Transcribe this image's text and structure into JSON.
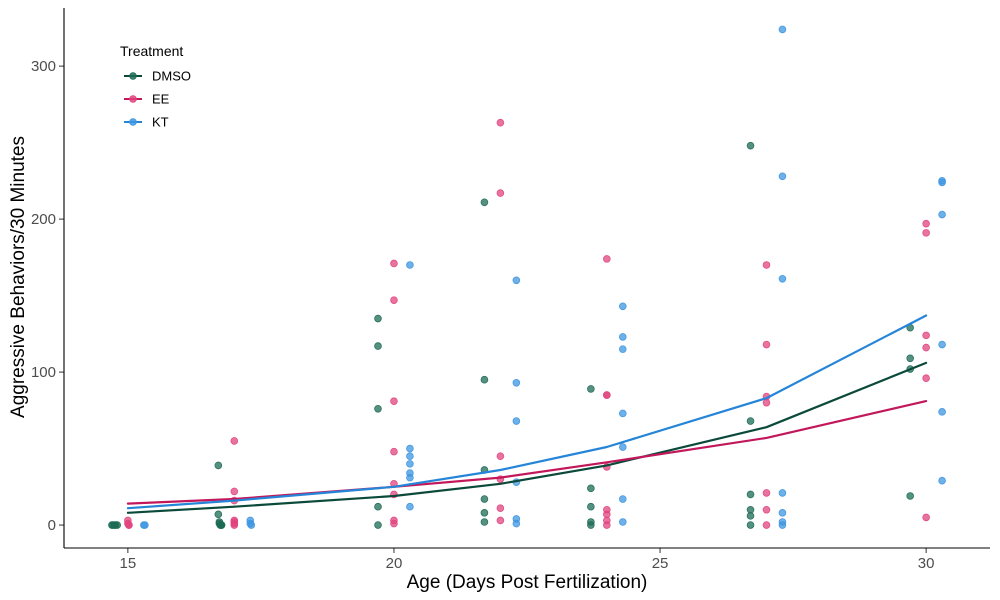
{
  "chart_data": {
    "type": "scatter",
    "xlabel": "Age (Days Post Fertilization)",
    "ylabel": "Aggressive Behaviors/30 Minutes",
    "xlim": [
      13.8,
      31.2
    ],
    "ylim": [
      -15,
      338
    ],
    "xticks": [
      15,
      20,
      25,
      30
    ],
    "yticks": [
      0,
      100,
      200,
      300
    ],
    "grid": false,
    "legend": {
      "title": "Treatment",
      "position": "top-left"
    },
    "series": [
      {
        "name": "DMSO",
        "color": "#1d6b55",
        "line_color": "#0b4a3a",
        "points": [
          [
            14.7,
            0
          ],
          [
            14.72,
            0
          ],
          [
            14.75,
            0
          ],
          [
            14.77,
            0
          ],
          [
            14.8,
            0
          ],
          [
            16.7,
            39
          ],
          [
            16.7,
            7
          ],
          [
            16.72,
            2
          ],
          [
            16.72,
            1
          ],
          [
            16.74,
            0
          ],
          [
            16.74,
            0
          ],
          [
            16.76,
            0
          ],
          [
            16.76,
            0
          ],
          [
            19.7,
            135
          ],
          [
            19.7,
            117
          ],
          [
            19.7,
            76
          ],
          [
            19.7,
            12
          ],
          [
            19.7,
            0
          ],
          [
            21.7,
            211
          ],
          [
            21.7,
            95
          ],
          [
            21.7,
            36
          ],
          [
            21.7,
            17
          ],
          [
            21.7,
            8
          ],
          [
            21.7,
            2
          ],
          [
            23.7,
            89
          ],
          [
            23.7,
            24
          ],
          [
            23.7,
            12
          ],
          [
            23.7,
            2
          ],
          [
            23.7,
            0
          ],
          [
            26.7,
            248
          ],
          [
            26.7,
            68
          ],
          [
            26.7,
            20
          ],
          [
            26.7,
            10
          ],
          [
            26.7,
            6
          ],
          [
            26.7,
            0
          ],
          [
            29.7,
            129
          ],
          [
            29.7,
            109
          ],
          [
            29.7,
            102
          ],
          [
            29.7,
            19
          ]
        ],
        "trend": [
          [
            15,
            8
          ],
          [
            17,
            12
          ],
          [
            20,
            19
          ],
          [
            22,
            27
          ],
          [
            24,
            39
          ],
          [
            27,
            64
          ],
          [
            30,
            106
          ]
        ]
      },
      {
        "name": "EE",
        "color": "#e0447e",
        "line_color": "#c2185b",
        "points": [
          [
            15,
            3
          ],
          [
            15,
            1
          ],
          [
            15.02,
            0
          ],
          [
            15.02,
            0
          ],
          [
            17,
            55
          ],
          [
            17,
            22
          ],
          [
            17,
            16
          ],
          [
            17,
            3
          ],
          [
            17,
            2
          ],
          [
            17,
            1
          ],
          [
            17,
            0
          ],
          [
            20,
            171
          ],
          [
            20,
            147
          ],
          [
            20,
            81
          ],
          [
            20,
            48
          ],
          [
            20,
            27
          ],
          [
            20,
            20
          ],
          [
            20,
            3
          ],
          [
            20,
            1
          ],
          [
            22,
            263
          ],
          [
            22,
            217
          ],
          [
            22,
            45
          ],
          [
            22,
            30
          ],
          [
            22,
            11
          ],
          [
            22,
            3
          ],
          [
            24,
            174
          ],
          [
            24,
            85
          ],
          [
            24,
            85
          ],
          [
            24,
            38
          ],
          [
            24,
            10
          ],
          [
            24,
            7
          ],
          [
            24,
            3
          ],
          [
            24,
            0
          ],
          [
            27,
            170
          ],
          [
            27,
            118
          ],
          [
            27,
            84
          ],
          [
            27,
            80
          ],
          [
            27,
            21
          ],
          [
            27,
            10
          ],
          [
            27,
            0
          ],
          [
            30,
            197
          ],
          [
            30,
            191
          ],
          [
            30,
            124
          ],
          [
            30,
            116
          ],
          [
            30,
            96
          ],
          [
            30,
            5
          ]
        ],
        "trend": [
          [
            15,
            14
          ],
          [
            17,
            17
          ],
          [
            20,
            25
          ],
          [
            22,
            31
          ],
          [
            24,
            41
          ],
          [
            27,
            57
          ],
          [
            30,
            81
          ]
        ]
      },
      {
        "name": "KT",
        "color": "#3d95e0",
        "line_color": "#2585d8",
        "points": [
          [
            15.3,
            0
          ],
          [
            15.32,
            0
          ],
          [
            17.3,
            3
          ],
          [
            17.3,
            1
          ],
          [
            17.32,
            0
          ],
          [
            20.3,
            170
          ],
          [
            20.3,
            50
          ],
          [
            20.3,
            45
          ],
          [
            20.3,
            40
          ],
          [
            20.3,
            34
          ],
          [
            20.3,
            31
          ],
          [
            20.3,
            12
          ],
          [
            22.3,
            160
          ],
          [
            22.3,
            93
          ],
          [
            22.3,
            68
          ],
          [
            22.3,
            28
          ],
          [
            22.3,
            4
          ],
          [
            22.3,
            1
          ],
          [
            24.3,
            143
          ],
          [
            24.3,
            123
          ],
          [
            24.3,
            115
          ],
          [
            24.3,
            73
          ],
          [
            24.3,
            51
          ],
          [
            24.3,
            17
          ],
          [
            24.3,
            2
          ],
          [
            27.3,
            324
          ],
          [
            27.3,
            228
          ],
          [
            27.3,
            161
          ],
          [
            27.3,
            21
          ],
          [
            27.3,
            8
          ],
          [
            27.3,
            2
          ],
          [
            27.3,
            0
          ],
          [
            30.3,
            225
          ],
          [
            30.3,
            224
          ],
          [
            30.3,
            203
          ],
          [
            30.3,
            118
          ],
          [
            30.3,
            74
          ],
          [
            30.3,
            29
          ]
        ],
        "trend": [
          [
            15,
            11
          ],
          [
            17,
            16
          ],
          [
            20,
            25
          ],
          [
            22,
            36
          ],
          [
            24,
            51
          ],
          [
            27,
            83
          ],
          [
            30,
            137
          ]
        ]
      }
    ]
  }
}
